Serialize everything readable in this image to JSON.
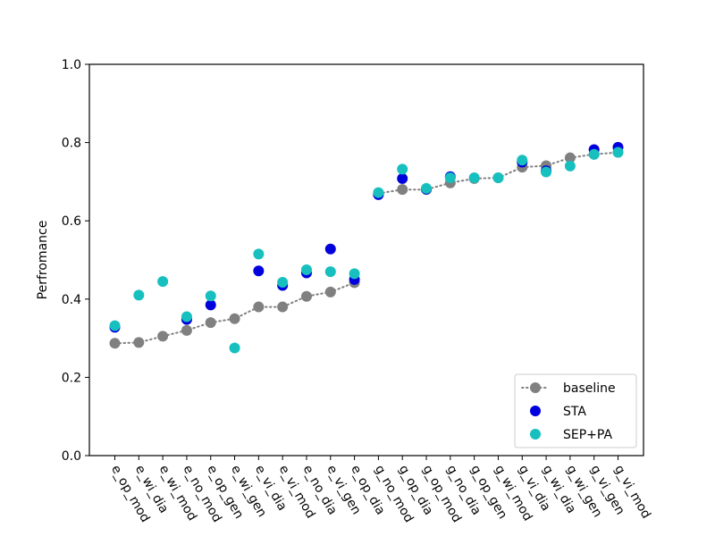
{
  "chart_data": {
    "type": "scatter",
    "title": "",
    "xlabel": "",
    "ylabel": "Perfromance",
    "ylim": [
      0.0,
      1.0
    ],
    "yticks": [
      "0.0",
      "0.2",
      "0.4",
      "0.6",
      "0.8",
      "1.0"
    ],
    "categories": [
      "e_op_mod",
      "e_wi_dia",
      "e_wi_mod",
      "e_no_mod",
      "e_op_gen",
      "e_wi_gen",
      "e_vi_dia",
      "e_vi_mod",
      "e_no_dia",
      "e_vi_gen",
      "e_op_dia",
      "g_no_mod",
      "g_op_dia",
      "g_op_mod",
      "g_no_dia",
      "g_op_gen",
      "g_wi_mod",
      "g_vi_dia",
      "g_wi_dia",
      "g_wi_gen",
      "g_vi_gen",
      "g_vi_mod"
    ],
    "grid": false,
    "legend_position": "bottom-right",
    "series": [
      {
        "name": "baseline",
        "color": "#808080",
        "style": "dotted-line-with-markers",
        "segments": [
          [
            0,
            10
          ],
          [
            11,
            21
          ]
        ],
        "values": [
          0.287,
          0.289,
          0.305,
          0.32,
          0.34,
          0.35,
          0.38,
          0.38,
          0.407,
          0.418,
          0.442,
          0.67,
          0.68,
          0.68,
          0.697,
          0.708,
          0.71,
          0.737,
          0.741,
          0.761,
          0.77,
          0.775
        ]
      },
      {
        "name": "STA",
        "color": "#0000dd",
        "style": "markers",
        "values": [
          0.328,
          null,
          null,
          0.348,
          0.385,
          null,
          0.472,
          0.435,
          0.467,
          0.528,
          0.45,
          0.667,
          0.708,
          0.681,
          0.713,
          null,
          null,
          0.75,
          0.728,
          null,
          0.782,
          0.788
        ]
      },
      {
        "name": "SEP+PA",
        "color": "#17bfbf",
        "style": "markers",
        "values": [
          0.332,
          0.41,
          0.445,
          0.355,
          0.408,
          0.275,
          0.515,
          0.443,
          0.475,
          0.47,
          0.465,
          0.672,
          0.732,
          0.683,
          0.71,
          0.71,
          0.71,
          0.755,
          0.725,
          0.74,
          0.77,
          0.775
        ]
      }
    ]
  }
}
